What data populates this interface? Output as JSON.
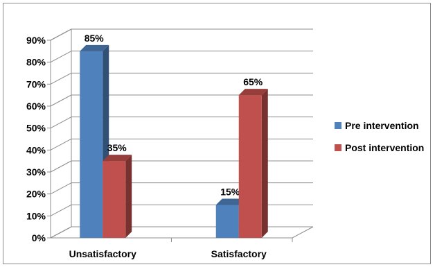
{
  "chart_data": {
    "type": "bar",
    "categories": [
      "Unsatisfactory",
      "Satisfactory"
    ],
    "series": [
      {
        "name": "Pre intervention",
        "values": [
          85,
          15
        ],
        "labels": [
          "85%",
          "15%"
        ],
        "color": "#4f81bd"
      },
      {
        "name": "Post intervention",
        "values": [
          35,
          65
        ],
        "labels": [
          "35%",
          "65%"
        ],
        "color": "#c0504d"
      }
    ],
    "ylim": [
      0,
      90
    ],
    "yticks": [
      "0%",
      "10%",
      "20%",
      "30%",
      "40%",
      "50%",
      "60%",
      "70%",
      "80%",
      "90%"
    ],
    "grid": true,
    "legend": "right",
    "style": "3d-column"
  }
}
